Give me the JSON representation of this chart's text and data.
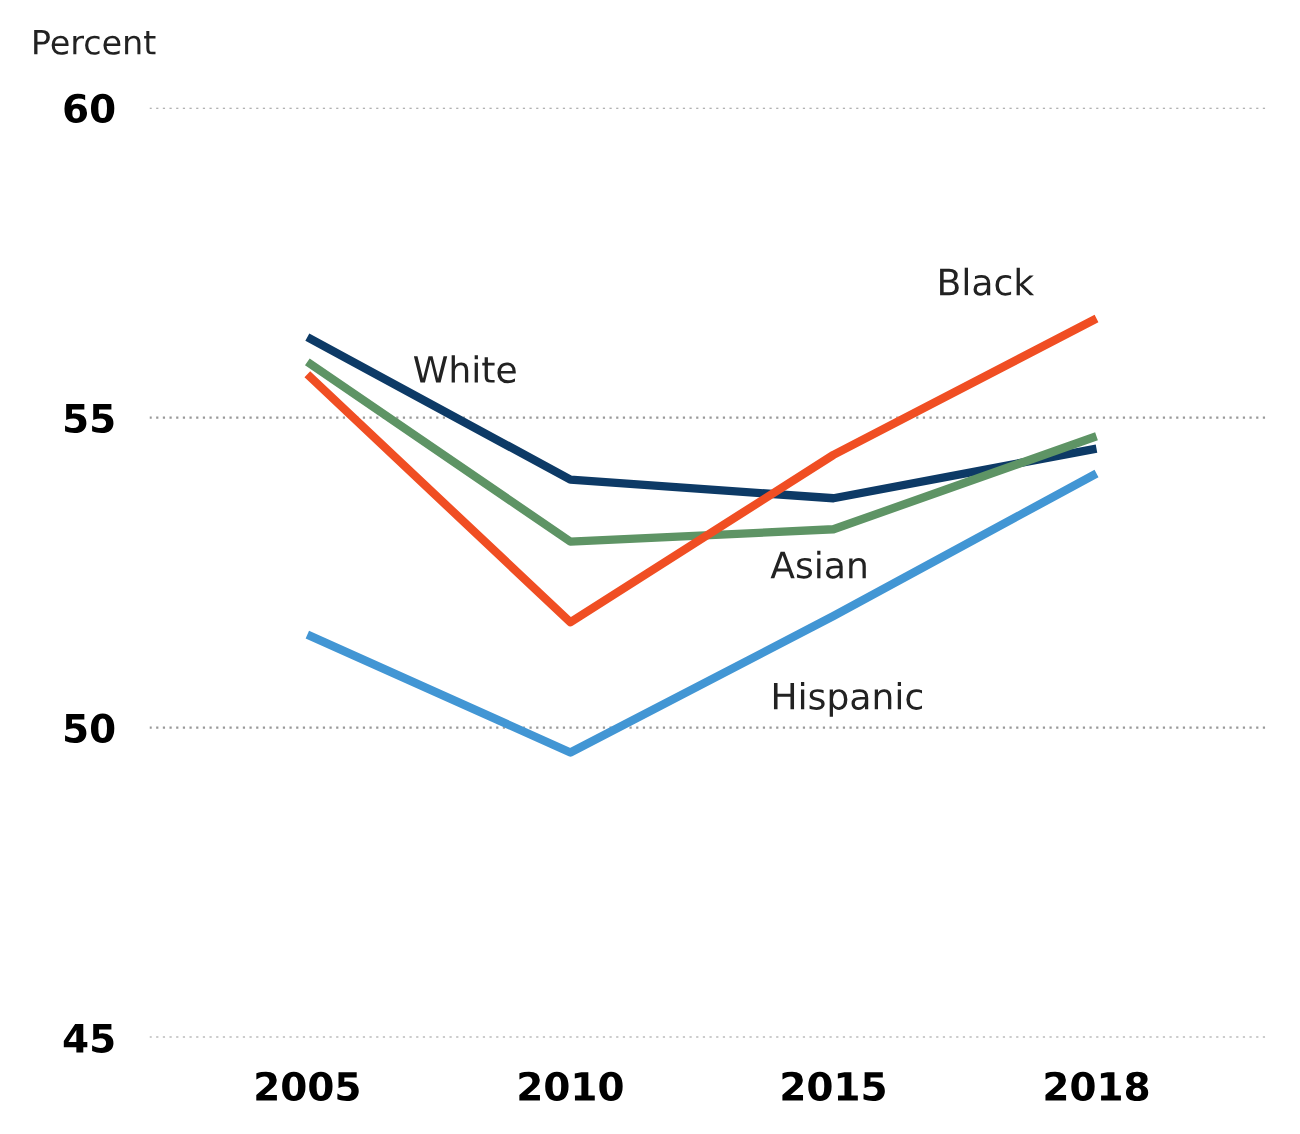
{
  "chart_data": {
    "type": "line",
    "ylabel": "Percent",
    "categories": [
      "2005",
      "2010",
      "2015",
      "2018"
    ],
    "series": [
      {
        "name": "White",
        "color": "#0d3a66",
        "values": [
          56.3,
          54.0,
          53.7,
          54.5
        ]
      },
      {
        "name": "Asian",
        "color": "#5e9465",
        "values": [
          55.9,
          53.0,
          53.2,
          54.7
        ]
      },
      {
        "name": "Black",
        "color": "#f04e23",
        "values": [
          55.7,
          51.7,
          54.4,
          56.6
        ]
      },
      {
        "name": "Hispanic",
        "color": "#4296d4",
        "values": [
          51.5,
          49.6,
          51.8,
          54.1
        ]
      }
    ],
    "ylim": [
      45,
      60
    ],
    "yticks": [
      45,
      50,
      55,
      60
    ],
    "grid": "y",
    "legend": false,
    "marker": "none",
    "line_style": "solid"
  }
}
